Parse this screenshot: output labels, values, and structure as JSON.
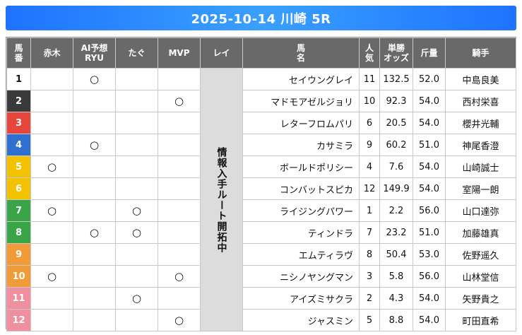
{
  "title": "2025-10-14 川崎 5R",
  "headers": {
    "umaban": [
      "馬",
      "番"
    ],
    "akagi": "赤木",
    "ai": [
      "AI予想",
      "RYU"
    ],
    "tagu": "たぐ",
    "mvp": "MVP",
    "rei": "レイ",
    "name": [
      "馬",
      "名"
    ],
    "ninki": [
      "人",
      "気"
    ],
    "odds": [
      "単勝",
      "オッズ"
    ],
    "kinryo": "斤量",
    "jockey": "騎手"
  },
  "rei_text": "情報入手ルート開拓中",
  "mark_symbol": "○",
  "rows": [
    {
      "num": "1",
      "akagi": "",
      "ai": "○",
      "tagu": "",
      "mvp": "",
      "name": "セイウングレイ",
      "ninki": "11",
      "odds": "132.5",
      "kinryo": "52.0",
      "jockey": "中島良美",
      "color": "#ffffff",
      "text_dark": true
    },
    {
      "num": "2",
      "akagi": "",
      "ai": "",
      "tagu": "",
      "mvp": "○",
      "name": "マドモアゼルジョリ",
      "ninki": "10",
      "odds": "92.3",
      "kinryo": "54.0",
      "jockey": "西村栄喜",
      "color": "#3a3a3a",
      "text_dark": false
    },
    {
      "num": "3",
      "akagi": "",
      "ai": "",
      "tagu": "",
      "mvp": "",
      "name": "レターフロムパリ",
      "ninki": "6",
      "odds": "20.5",
      "kinryo": "54.0",
      "jockey": "櫻井光輔",
      "color": "#e8453c",
      "text_dark": false
    },
    {
      "num": "4",
      "akagi": "",
      "ai": "○",
      "tagu": "",
      "mvp": "",
      "name": "カサミラ",
      "ninki": "9",
      "odds": "60.2",
      "kinryo": "51.0",
      "jockey": "神尾香澄",
      "color": "#2f6fd0",
      "text_dark": false
    },
    {
      "num": "5",
      "akagi": "○",
      "ai": "",
      "tagu": "",
      "mvp": "",
      "name": "ボールドポリシー",
      "ninki": "4",
      "odds": "7.6",
      "kinryo": "54.0",
      "jockey": "山崎誠士",
      "color": "#f2c200",
      "text_dark": false
    },
    {
      "num": "6",
      "akagi": "",
      "ai": "",
      "tagu": "",
      "mvp": "",
      "name": "コンバットスピカ",
      "ninki": "12",
      "odds": "149.9",
      "kinryo": "54.0",
      "jockey": "室陽一朗",
      "color": "#f2c200",
      "text_dark": false
    },
    {
      "num": "7",
      "akagi": "○",
      "ai": "",
      "tagu": "○",
      "mvp": "",
      "name": "ライジングパワー",
      "ninki": "1",
      "odds": "2.2",
      "kinryo": "56.0",
      "jockey": "山口達弥",
      "color": "#3aa547",
      "text_dark": false
    },
    {
      "num": "8",
      "akagi": "",
      "ai": "○",
      "tagu": "○",
      "mvp": "",
      "name": "ティンドラ",
      "ninki": "7",
      "odds": "23.2",
      "kinryo": "51.0",
      "jockey": "加藤雄真",
      "color": "#3aa547",
      "text_dark": false
    },
    {
      "num": "9",
      "akagi": "",
      "ai": "",
      "tagu": "",
      "mvp": "",
      "name": "エムティラヴ",
      "ninki": "8",
      "odds": "50.4",
      "kinryo": "53.0",
      "jockey": "佐野遥久",
      "color": "#f09a38",
      "text_dark": false
    },
    {
      "num": "10",
      "akagi": "○",
      "ai": "",
      "tagu": "",
      "mvp": "○",
      "name": "ニシノヤングマン",
      "ninki": "3",
      "odds": "5.8",
      "kinryo": "56.0",
      "jockey": "山林堂信",
      "color": "#f09a38",
      "text_dark": false
    },
    {
      "num": "11",
      "akagi": "",
      "ai": "",
      "tagu": "○",
      "mvp": "",
      "name": "アイズミサクラ",
      "ninki": "2",
      "odds": "4.3",
      "kinryo": "54.0",
      "jockey": "矢野貴之",
      "color": "#f08fa0",
      "text_dark": false
    },
    {
      "num": "12",
      "akagi": "",
      "ai": "",
      "tagu": "",
      "mvp": "○",
      "name": "ジャスミン",
      "ninki": "5",
      "odds": "8.8",
      "kinryo": "54.0",
      "jockey": "町田直希",
      "color": "#f08fa0",
      "text_dark": false
    }
  ]
}
